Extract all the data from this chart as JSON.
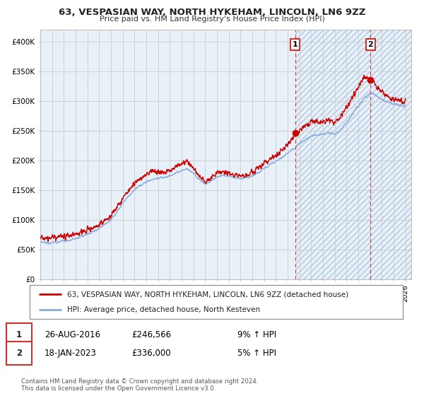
{
  "title": "63, VESPASIAN WAY, NORTH HYKEHAM, LINCOLN, LN6 9ZZ",
  "subtitle": "Price paid vs. HM Land Registry's House Price Index (HPI)",
  "legend_line1": "63, VESPASIAN WAY, NORTH HYKEHAM, LINCOLN, LN6 9ZZ (detached house)",
  "legend_line2": "HPI: Average price, detached house, North Kesteven",
  "annotation1_label": "1",
  "annotation1_date": "26-AUG-2016",
  "annotation1_price": "£246,566",
  "annotation1_hpi": "9% ↑ HPI",
  "annotation2_label": "2",
  "annotation2_date": "18-JAN-2023",
  "annotation2_price": "£336,000",
  "annotation2_hpi": "5% ↑ HPI",
  "footer": "Contains HM Land Registry data © Crown copyright and database right 2024.\nThis data is licensed under the Open Government Licence v3.0.",
  "red_line_color": "#cc0000",
  "blue_line_color": "#88aadd",
  "background_color": "#e8f0f8",
  "grid_color": "#cccccc",
  "ylim": [
    0,
    420000
  ],
  "yticks": [
    0,
    50000,
    100000,
    150000,
    200000,
    250000,
    300000,
    350000,
    400000
  ],
  "ytick_labels": [
    "£0",
    "£50K",
    "£100K",
    "£150K",
    "£200K",
    "£250K",
    "£300K",
    "£350K",
    "£400K"
  ],
  "point1_x": 2016.65,
  "point1_y": 246566,
  "point2_x": 2023.05,
  "point2_y": 336000,
  "vline1_x": 2016.65,
  "vline2_x": 2023.05,
  "hatch_start_x": 2016.65,
  "xmin": 1995.0,
  "xmax": 2026.5
}
